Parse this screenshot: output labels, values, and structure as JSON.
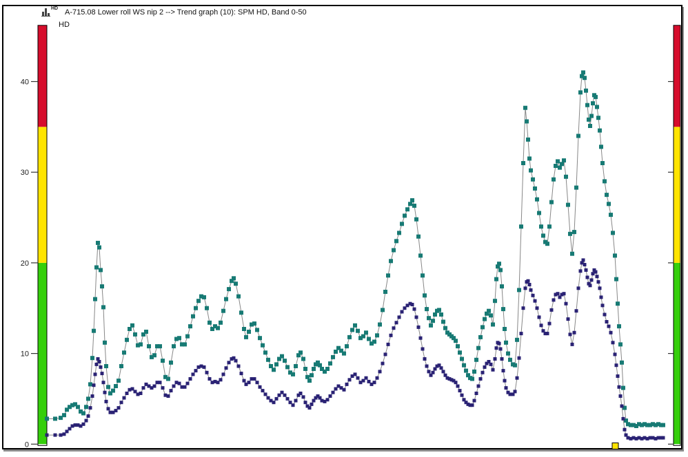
{
  "window": {
    "title": "A-715.08 Lower roll WS nip 2 --> Trend graph (10): SPM HD, Band 0-50",
    "icon": "trend-graph-icon",
    "icon_superscript": "HD"
  },
  "chart": {
    "unit_label": "HD",
    "y_axis": {
      "ticks": [
        0,
        10,
        20,
        30,
        40
      ]
    },
    "condition_scale": {
      "colors": {
        "red": "#d60d2c",
        "yellow": "#ffe400",
        "green": "#35cf0b"
      },
      "yellow_above": 20,
      "red_above": 35,
      "scale_top": 46.2
    },
    "timeline_marker": {
      "x": 888,
      "color": "#ffe400"
    }
  },
  "chart_data": {
    "type": "line",
    "title": "A-715.08 Lower roll WS nip 2 --> Trend graph (10): SPM HD, Band 0-50",
    "xlabel": "",
    "ylabel": "HD",
    "ylim": [
      0,
      46.2
    ],
    "y_ticks": [
      0,
      10,
      20,
      30,
      40
    ],
    "grid": false,
    "legend": "none",
    "marker": "square",
    "connector_color": "#878787",
    "series": [
      {
        "name": "HD upper (teal)",
        "color": "#177a74"
      },
      {
        "name": "HD lower (navy)",
        "color": "#2a2274"
      }
    ],
    "points_format": [
      "x_px",
      "upper_value",
      "lower_value"
    ],
    "points": [
      [
        68,
        2.8,
        1.0
      ],
      [
        80,
        2.8,
        1.0
      ],
      [
        88,
        2.9,
        1.0
      ],
      [
        93,
        3.2,
        1.1
      ],
      [
        97,
        3.8,
        1.4
      ],
      [
        101,
        4.1,
        1.7
      ],
      [
        105,
        4.3,
        2.0
      ],
      [
        109,
        4.4,
        2.1
      ],
      [
        113,
        4.1,
        2.1
      ],
      [
        117,
        3.6,
        2.0
      ],
      [
        121,
        3.4,
        2.2
      ],
      [
        125,
        4.1,
        2.6
      ],
      [
        128,
        5.0,
        3.1
      ],
      [
        131,
        6.6,
        4.0
      ],
      [
        134,
        9.5,
        5.3
      ],
      [
        136,
        12.5,
        6.5
      ],
      [
        138,
        16.0,
        7.7
      ],
      [
        140,
        19.5,
        8.8
      ],
      [
        142,
        22.2,
        9.4
      ],
      [
        144,
        21.7,
        9.1
      ],
      [
        146,
        19.2,
        8.5
      ],
      [
        148,
        17.4,
        7.8
      ],
      [
        150,
        15.1,
        6.8
      ],
      [
        152,
        11.2,
        5.7
      ],
      [
        154,
        8.6,
        4.7
      ],
      [
        157,
        6.3,
        3.9
      ],
      [
        160,
        5.6,
        3.5
      ],
      [
        164,
        5.9,
        3.5
      ],
      [
        168,
        6.4,
        3.7
      ],
      [
        172,
        7.0,
        4.0
      ],
      [
        176,
        8.6,
        4.6
      ],
      [
        180,
        10.1,
        5.1
      ],
      [
        184,
        11.5,
        5.6
      ],
      [
        188,
        12.7,
        6.0
      ],
      [
        192,
        13.1,
        6.1
      ],
      [
        196,
        12.1,
        5.8
      ],
      [
        200,
        10.9,
        5.5
      ],
      [
        204,
        11.0,
        5.6
      ],
      [
        208,
        12.1,
        6.2
      ],
      [
        212,
        12.4,
        6.6
      ],
      [
        216,
        10.8,
        6.4
      ],
      [
        220,
        9.6,
        6.2
      ],
      [
        224,
        9.8,
        6.4
      ],
      [
        228,
        10.8,
        6.8
      ],
      [
        232,
        10.8,
        6.8
      ],
      [
        236,
        9.2,
        6.2
      ],
      [
        240,
        7.4,
        5.4
      ],
      [
        244,
        7.2,
        5.3
      ],
      [
        248,
        9.0,
        5.9
      ],
      [
        252,
        10.8,
        6.4
      ],
      [
        256,
        11.6,
        6.8
      ],
      [
        260,
        11.7,
        6.7
      ],
      [
        264,
        11.0,
        6.3
      ],
      [
        268,
        11.0,
        6.3
      ],
      [
        272,
        11.9,
        6.7
      ],
      [
        276,
        13.0,
        7.2
      ],
      [
        280,
        14.1,
        7.7
      ],
      [
        284,
        15.0,
        8.1
      ],
      [
        288,
        15.8,
        8.5
      ],
      [
        292,
        16.3,
        8.6
      ],
      [
        296,
        16.2,
        8.5
      ],
      [
        300,
        15.0,
        7.9
      ],
      [
        304,
        13.4,
        7.2
      ],
      [
        308,
        12.7,
        6.8
      ],
      [
        312,
        13.0,
        6.9
      ],
      [
        316,
        12.8,
        6.8
      ],
      [
        320,
        13.4,
        7.1
      ],
      [
        324,
        14.7,
        7.7
      ],
      [
        328,
        16.0,
        8.4
      ],
      [
        332,
        17.1,
        9.0
      ],
      [
        336,
        18.0,
        9.4
      ],
      [
        339,
        18.3,
        9.5
      ],
      [
        342,
        17.7,
        9.2
      ],
      [
        346,
        16.3,
        8.6
      ],
      [
        350,
        14.5,
        7.8
      ],
      [
        354,
        12.7,
        7.0
      ],
      [
        357,
        11.8,
        6.6
      ],
      [
        361,
        12.4,
        6.8
      ],
      [
        365,
        13.2,
        7.2
      ],
      [
        369,
        13.3,
        7.2
      ],
      [
        373,
        12.6,
        6.8
      ],
      [
        377,
        11.7,
        6.3
      ],
      [
        381,
        10.9,
        5.9
      ],
      [
        385,
        10.1,
        5.5
      ],
      [
        389,
        9.3,
        5.1
      ],
      [
        393,
        8.6,
        4.8
      ],
      [
        397,
        8.2,
        4.6
      ],
      [
        401,
        8.8,
        5.0
      ],
      [
        405,
        9.4,
        5.4
      ],
      [
        409,
        9.7,
        5.7
      ],
      [
        413,
        9.2,
        5.4
      ],
      [
        417,
        8.5,
        5.0
      ],
      [
        421,
        7.9,
        4.6
      ],
      [
        425,
        7.7,
        4.3
      ],
      [
        429,
        8.6,
        4.8
      ],
      [
        433,
        9.8,
        5.4
      ],
      [
        436,
        10.1,
        5.6
      ],
      [
        440,
        9.4,
        5.2
      ],
      [
        443,
        8.3,
        4.6
      ],
      [
        446,
        7.4,
        4.2
      ],
      [
        449,
        7.0,
        4.0
      ],
      [
        452,
        7.6,
        4.4
      ],
      [
        455,
        8.3,
        4.8
      ],
      [
        458,
        8.8,
        5.1
      ],
      [
        461,
        9.0,
        5.3
      ],
      [
        464,
        8.7,
        5.1
      ],
      [
        467,
        8.3,
        4.8
      ],
      [
        471,
        8.0,
        4.7
      ],
      [
        475,
        8.3,
        4.9
      ],
      [
        479,
        8.9,
        5.3
      ],
      [
        483,
        9.6,
        5.7
      ],
      [
        487,
        10.2,
        6.1
      ],
      [
        491,
        10.6,
        6.4
      ],
      [
        495,
        10.3,
        6.2
      ],
      [
        499,
        10.0,
        6.0
      ],
      [
        503,
        10.8,
        6.6
      ],
      [
        507,
        11.8,
        7.1
      ],
      [
        511,
        12.6,
        7.5
      ],
      [
        515,
        13.1,
        7.7
      ],
      [
        519,
        12.5,
        7.3
      ],
      [
        523,
        11.7,
        6.8
      ],
      [
        527,
        11.9,
        7.0
      ],
      [
        531,
        12.3,
        7.3
      ],
      [
        535,
        11.6,
        6.9
      ],
      [
        539,
        11.1,
        6.6
      ],
      [
        543,
        11.3,
        6.8
      ],
      [
        547,
        12.0,
        7.3
      ],
      [
        551,
        13.2,
        8.0
      ],
      [
        555,
        14.8,
        8.9
      ],
      [
        559,
        16.8,
        9.9
      ],
      [
        563,
        18.6,
        11.0
      ],
      [
        567,
        20.2,
        12.0
      ],
      [
        571,
        21.4,
        12.8
      ],
      [
        575,
        22.4,
        13.4
      ],
      [
        579,
        23.3,
        14.0
      ],
      [
        583,
        24.3,
        14.6
      ],
      [
        587,
        25.2,
        15.0
      ],
      [
        591,
        25.9,
        15.3
      ],
      [
        595,
        26.5,
        15.5
      ],
      [
        598,
        26.9,
        15.4
      ],
      [
        601,
        26.3,
        14.9
      ],
      [
        604,
        24.8,
        14.0
      ],
      [
        607,
        22.9,
        12.9
      ],
      [
        610,
        20.8,
        11.7
      ],
      [
        613,
        18.6,
        10.5
      ],
      [
        616,
        16.4,
        9.4
      ],
      [
        619,
        14.9,
        8.6
      ],
      [
        622,
        13.9,
        8.0
      ],
      [
        625,
        13.1,
        7.6
      ],
      [
        628,
        13.6,
        7.9
      ],
      [
        631,
        14.3,
        8.3
      ],
      [
        634,
        14.7,
        8.6
      ],
      [
        637,
        14.8,
        8.7
      ],
      [
        640,
        14.3,
        8.4
      ],
      [
        643,
        13.5,
        8.0
      ],
      [
        646,
        12.8,
        7.6
      ],
      [
        649,
        12.3,
        7.3
      ],
      [
        652,
        12.1,
        7.2
      ],
      [
        655,
        11.9,
        7.1
      ],
      [
        658,
        11.7,
        7.0
      ],
      [
        661,
        11.4,
        6.8
      ],
      [
        664,
        10.8,
        6.4
      ],
      [
        667,
        10.1,
        5.9
      ],
      [
        670,
        9.4,
        5.4
      ],
      [
        673,
        8.7,
        4.9
      ],
      [
        676,
        8.1,
        4.6
      ],
      [
        679,
        7.6,
        4.4
      ],
      [
        682,
        7.3,
        4.3
      ],
      [
        685,
        7.2,
        4.3
      ],
      [
        688,
        8.0,
        4.8
      ],
      [
        691,
        9.3,
        5.6
      ],
      [
        694,
        10.6,
        6.4
      ],
      [
        697,
        11.8,
        7.2
      ],
      [
        700,
        12.9,
        7.9
      ],
      [
        703,
        13.8,
        8.5
      ],
      [
        706,
        14.4,
        8.9
      ],
      [
        709,
        14.7,
        9.1
      ],
      [
        712,
        14.2,
        8.8
      ],
      [
        715,
        13.2,
        8.2
      ],
      [
        718,
        15.8,
        9.4
      ],
      [
        720,
        18.2,
        10.6
      ],
      [
        722,
        19.6,
        11.2
      ],
      [
        724,
        19.9,
        11.1
      ],
      [
        726,
        19.2,
        10.5
      ],
      [
        728,
        17.4,
        9.4
      ],
      [
        730,
        14.9,
        8.1
      ],
      [
        732,
        12.7,
        7.0
      ],
      [
        734,
        11.2,
        6.2
      ],
      [
        737,
        10.0,
        5.7
      ],
      [
        740,
        9.3,
        5.5
      ],
      [
        744,
        8.8,
        5.5
      ],
      [
        747,
        8.7,
        5.8
      ],
      [
        750,
        11.5,
        7.3
      ],
      [
        753,
        17.0,
        9.5
      ],
      [
        756,
        24.0,
        12.2
      ],
      [
        759,
        31.0,
        15.0
      ],
      [
        762,
        37.1,
        17.2
      ],
      [
        764,
        35.6,
        17.9
      ],
      [
        766,
        33.6,
        18.0
      ],
      [
        768,
        31.5,
        17.6
      ],
      [
        770,
        30.2,
        17.0
      ],
      [
        773,
        29.2,
        16.4
      ],
      [
        776,
        28.2,
        15.8
      ],
      [
        779,
        27.0,
        15.0
      ],
      [
        782,
        25.5,
        14.0
      ],
      [
        785,
        24.0,
        13.1
      ],
      [
        788,
        23.0,
        12.5
      ],
      [
        791,
        22.3,
        12.2
      ],
      [
        794,
        22.1,
        12.2
      ],
      [
        797,
        24.0,
        13.3
      ],
      [
        800,
        26.7,
        14.8
      ],
      [
        803,
        29.2,
        15.9
      ],
      [
        806,
        30.7,
        16.5
      ],
      [
        809,
        31.2,
        16.6
      ],
      [
        812,
        30.5,
        16.2
      ],
      [
        815,
        30.9,
        16.5
      ],
      [
        818,
        31.3,
        16.6
      ],
      [
        821,
        29.5,
        15.5
      ],
      [
        824,
        26.4,
        13.8
      ],
      [
        827,
        23.2,
        12.1
      ],
      [
        830,
        21.0,
        11.0
      ],
      [
        833,
        23.4,
        12.3
      ],
      [
        836,
        28.3,
        14.7
      ],
      [
        839,
        34.0,
        17.2
      ],
      [
        842,
        38.8,
        19.1
      ],
      [
        844,
        40.6,
        20.0
      ],
      [
        846,
        41.0,
        20.3
      ],
      [
        848,
        40.4,
        19.8
      ],
      [
        850,
        39.0,
        19.2
      ],
      [
        852,
        37.4,
        18.4
      ],
      [
        854,
        35.8,
        17.7
      ],
      [
        856,
        35.1,
        17.5
      ],
      [
        858,
        36.2,
        18.1
      ],
      [
        860,
        37.6,
        18.8
      ],
      [
        862,
        38.5,
        19.2
      ],
      [
        864,
        38.3,
        19.0
      ],
      [
        866,
        37.2,
        18.5
      ],
      [
        868,
        36.0,
        17.9
      ],
      [
        870,
        34.6,
        17.2
      ],
      [
        872,
        32.8,
        16.2
      ],
      [
        874,
        31.0,
        15.3
      ],
      [
        877,
        29.0,
        14.3
      ],
      [
        880,
        27.5,
        13.5
      ],
      [
        883,
        26.5,
        13.0
      ],
      [
        886,
        25.3,
        12.3
      ],
      [
        889,
        23.3,
        11.2
      ],
      [
        892,
        20.8,
        9.9
      ],
      [
        894,
        18.2,
        8.7
      ],
      [
        896,
        15.5,
        7.5
      ],
      [
        898,
        13.0,
        6.3
      ],
      [
        900,
        11.0,
        5.3
      ],
      [
        902,
        9.0,
        4.2
      ],
      [
        904,
        6.2,
        2.8
      ],
      [
        906,
        4.0,
        1.6
      ],
      [
        908,
        2.6,
        1.0
      ],
      [
        911,
        2.2,
        0.7
      ],
      [
        915,
        2.1,
        0.6
      ],
      [
        919,
        2.1,
        0.7
      ],
      [
        923,
        2.0,
        0.6
      ],
      [
        927,
        2.2,
        0.7
      ],
      [
        931,
        2.1,
        0.6
      ],
      [
        935,
        2.2,
        0.7
      ],
      [
        939,
        2.1,
        0.6
      ],
      [
        943,
        2.1,
        0.7
      ],
      [
        947,
        2.2,
        0.7
      ],
      [
        951,
        2.1,
        0.6
      ],
      [
        955,
        2.2,
        0.7
      ],
      [
        959,
        2.1,
        0.7
      ],
      [
        962,
        2.1,
        0.7
      ]
    ]
  }
}
